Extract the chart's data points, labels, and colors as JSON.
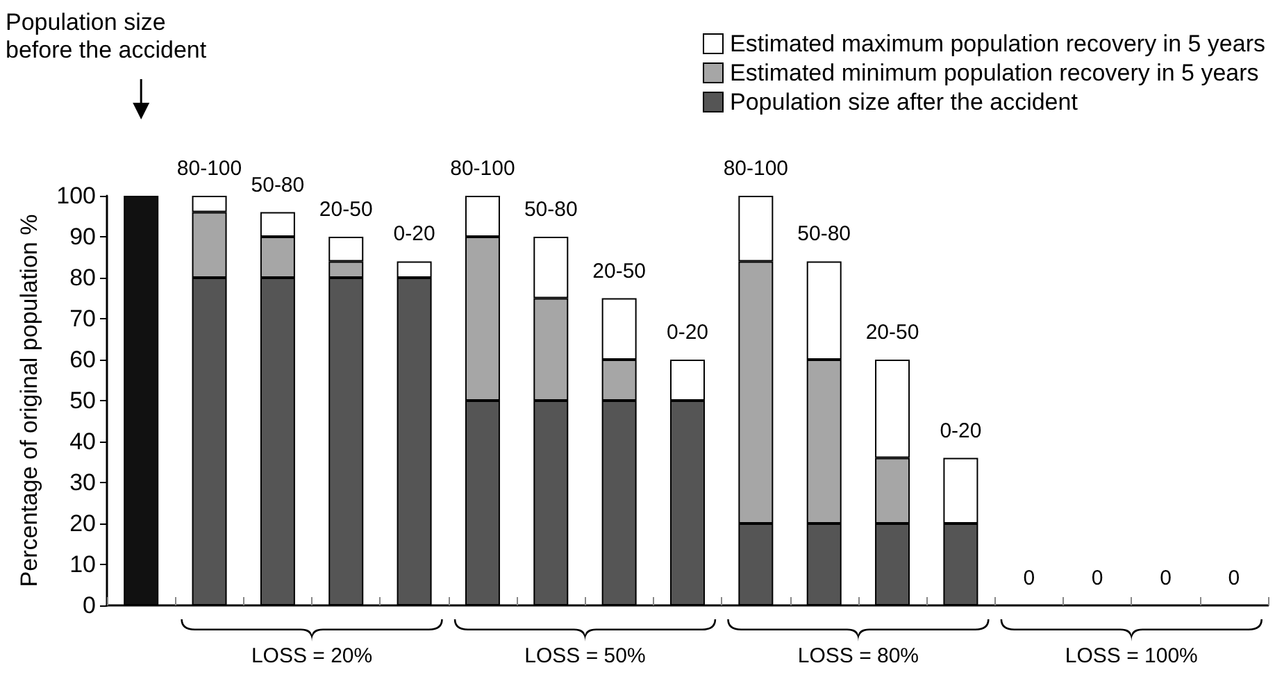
{
  "chart_data": {
    "type": "bar",
    "stacked": true,
    "ylabel": "Percentage of original population %",
    "categories": [
      null,
      null,
      null,
      null,
      null,
      null,
      null,
      null,
      null,
      null,
      null,
      null,
      null,
      null,
      null,
      null,
      null
    ],
    "series": [
      {
        "name": "Population size after the accident",
        "color": "#555555",
        "values": [
          null,
          80,
          80,
          80,
          80,
          50,
          50,
          50,
          50,
          20,
          20,
          20,
          20,
          0,
          0,
          0,
          0
        ]
      },
      {
        "name": "Estimated minimum population recovery in 5 years",
        "color": "#a6a6a6",
        "values": [
          null,
          16,
          10,
          4,
          0,
          40,
          25,
          10,
          0,
          64,
          40,
          16,
          0,
          0,
          0,
          0,
          0
        ]
      },
      {
        "name": "Estimated maximum population recovery in 5 years",
        "color": "#ffffff",
        "values": [
          null,
          4,
          6,
          6,
          4,
          10,
          15,
          15,
          10,
          16,
          24,
          24,
          16,
          0,
          0,
          0,
          0
        ],
        "value_labels": [
          null,
          "80-100",
          "50-80",
          "20-50",
          "0-20",
          "80-100",
          "50-80",
          "20-50",
          "0-20",
          "80-100",
          "50-80",
          "20-50",
          "0-20",
          "0",
          "0",
          "0",
          "0"
        ]
      },
      {
        "color": "#111111",
        "values": [
          100,
          null,
          null,
          null,
          null,
          null,
          null,
          null,
          null,
          null,
          null,
          null,
          null,
          null,
          null,
          null,
          null
        ]
      }
    ],
    "ylim": [
      0,
      100
    ],
    "yticks": [
      0,
      10,
      20,
      30,
      40,
      50,
      60,
      70,
      80,
      90,
      100
    ],
    "legend": "top right",
    "grid": false,
    "annotations": [
      "Population size before the accident",
      "LOSS = 20%",
      "LOSS = 50%",
      "LOSS = 80%",
      "LOSS = 100%"
    ]
  }
}
